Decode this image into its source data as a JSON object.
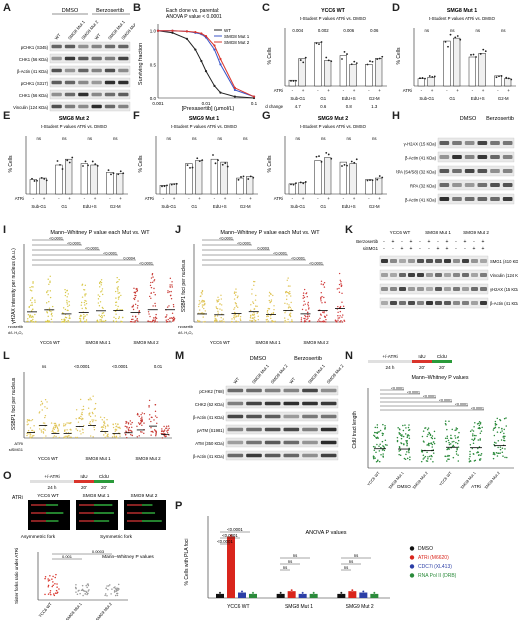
{
  "labels": {
    "A": "A",
    "B": "B",
    "C": "C",
    "D": "D",
    "E": "E",
    "F": "F",
    "G": "G",
    "H": "H",
    "I": "I",
    "J": "J",
    "K": "K",
    "L": "L",
    "M": "M",
    "N": "N",
    "O": "O",
    "P": "P"
  },
  "panelA": {
    "dmso": "DMSO",
    "berzo": "Berzosertib",
    "cols": [
      "WT",
      "SMG8 Mut 1",
      "SMG8 Mut 2",
      "WT",
      "SMG8 Mut 1",
      "SMG8 Mut 2"
    ],
    "rows": [
      "pCHK1 (S345)",
      "CHK1 (56 KDa)",
      "β-Actin (41 KDa)",
      "pCHK1 (S317)",
      "CHK1 (56 KDa)",
      "Vinculin (124 KDa)"
    ]
  },
  "panelB": {
    "note1": "Each clone vs. parental:",
    "note2": "ANOVA P value < 0.0001",
    "xlabel": "[Prexasertib] (μmol/L)",
    "ylabel": "Surviving fraction",
    "legend": [
      "WT",
      "SMG8 Mut 1",
      "SMG8 Mut 2"
    ],
    "colors": [
      "#222222",
      "#3b56c9",
      "#d9342b"
    ],
    "yticks": [
      "1.0",
      "0.5",
      "0.0"
    ],
    "xticks": [
      "0.001",
      "0.01",
      "0.1"
    ]
  },
  "panelC": {
    "title": "YCC6 WT",
    "sub": "t-Student P values ATRi vs. DMSO",
    "fc_label": "Fold change",
    "fc": [
      "4.7",
      "0.6",
      "0.8",
      "1.3"
    ],
    "pvals": [
      "0.004",
      "0.002",
      "0.006",
      "0.06"
    ],
    "cats": [
      "Sub-G1",
      "G1",
      "EdU+S",
      "G2-M"
    ],
    "ylabel": "% Cells",
    "atri": "ATRi"
  },
  "panelD": {
    "title": "SMG8 Mut 1",
    "sub": "t-Student P values ATRi vs. DMSO",
    "pvals": [
      "ns",
      "ns",
      "ns",
      "ns"
    ],
    "cats": [
      "Sub-G1",
      "G1",
      "EdU+S",
      "G2-M"
    ],
    "ylabel": "% Cells",
    "atri": "ATRi"
  },
  "panelE": {
    "title": "SMG8 Mut 2",
    "sub": "t-Student P values ATRi vs. DMSO",
    "pvals": [
      "ns",
      "ns",
      "ns",
      "ns"
    ],
    "cats": [
      "Sub-G1",
      "G1",
      "EdU+S",
      "G2-M"
    ],
    "ylabel": "% Cells",
    "atri": "ATRi"
  },
  "panelF": {
    "title": "SMG9 Mut 1",
    "sub": "t-Student P values ATRi vs. DMSO",
    "pvals": [
      "ns",
      "ns",
      "ns",
      "ns"
    ],
    "cats": [
      "Sub-G1",
      "G1",
      "EdU+S",
      "G2-M"
    ],
    "ylabel": "% Cells",
    "atri": "ATRi"
  },
  "panelG": {
    "title": "SMG9 Mut 2",
    "sub": "t-Student P values ATRi vs. DMSO",
    "pvals": [
      "ns",
      "ns",
      "ns",
      "ns"
    ],
    "cats": [
      "Sub-G1",
      "G1",
      "EdU+S",
      "G2-M"
    ],
    "ylabel": "% Cells",
    "atri": "ATRi"
  },
  "panelH": {
    "dmso": "DMSO",
    "berzo": "Berzosertib",
    "rows": [
      "γ-H2AX (15 KDa)",
      "β-Actin (41 KDa)",
      "pRPA (S4/S8) (32 KDa)",
      "RPA (32 KDa)",
      "β-Actin (41 KDa)"
    ]
  },
  "panelI": {
    "title": "Mann–Whitney P value each Mut vs. WT",
    "ylabel": "γH2AX intensity per nucleus (a.u.)",
    "groups": [
      "YCC6 WT",
      "SMG8 Mut 1",
      "SMG9 Mut 2"
    ],
    "row1": "24 hr berzosertib",
    "row2": "3 hr 3 mmol/L H₂O₂",
    "pvals": [
      "<0.0001",
      "<0.0001",
      "<0.0001",
      "<0.0001",
      "0.0004",
      "<0.0001"
    ]
  },
  "panelJ": {
    "title": "Mann–Whitney P value each Mut vs. WT",
    "ylabel": "SSBP1 foci per nucleus",
    "groups": [
      "YCC6 WT",
      "SMG8 Mut 1",
      "SMG9 Mut 2"
    ],
    "row1": "24 hr berzosertib",
    "row2": "3 hr 4 mmol/L H₂O₂",
    "pvals": [
      "<0.0001",
      "<0.0001",
      "0.0003",
      "<0.0001",
      "<0.0001",
      "<0.0001"
    ]
  },
  "panelK": {
    "groups": [
      "YCC6 WT",
      "SMG8 Mut 1",
      "SMG9 Mut 2"
    ],
    "row1": "Berzosertib",
    "row2": "siSMG1",
    "rows": [
      "SMG1 (410 KDa)",
      "Vinculin (124 KDa)",
      "γH2AX (15 KDa)",
      "β-Actin (41 KDa)"
    ]
  },
  "panelL": {
    "ylabel": "SSBP1 foci per nucleus",
    "groups": [
      "YCC6 WT",
      "SMG8 Mut 1",
      "SMG9 Mut 2"
    ],
    "row1": "ATRi",
    "row2": "siSMG1",
    "pvals": [
      "ns",
      "<0.0001",
      "<0.0001",
      "0.01"
    ]
  },
  "panelM": {
    "dmso": "DMSO",
    "berzo": "Berzosertib",
    "cols": [
      "WT",
      "SMG8 Mut 1",
      "SMG9 Mut 2",
      "WT",
      "SMG8 Mut 1",
      "SMG9 Mut 2"
    ],
    "rows": [
      "pCHK2 (T68)",
      "CHK2 (62 KDa)",
      "β-Actin (41 KDa)",
      "pATM (S1981)",
      "ATM (350 KDa)",
      "β-Actin (41 KDa)"
    ]
  },
  "panelN": {
    "timeline": [
      "+/-ATRi",
      "IdU",
      "CldU"
    ],
    "times": [
      "24 h",
      "20'",
      "20'"
    ],
    "title": "Mann–Whitney P values",
    "ylabel": "CldU tract length",
    "pvals": [
      "<0.0001",
      "<0.0001",
      "<0.0001",
      "<0.0001",
      "<0.0001",
      "<0.0001"
    ],
    "cond": [
      "DMSO",
      "ATRi"
    ],
    "groups": [
      "YCC6 WT",
      "SMG8 Mut 1",
      "SMG9 Mut 2"
    ]
  },
  "panelO": {
    "timeline": [
      "+/-ATRi",
      "IdU",
      "CldU"
    ],
    "times": [
      "24 h",
      "20'",
      "20'"
    ],
    "atri": "ATRi",
    "clones": [
      "YCC6 WT",
      "SMG8 Mut 1",
      "SMG9 Mut 2"
    ],
    "asym": "Asymmetric fork",
    "sym": "Symmetric fork",
    "ylabel": "Sister forks ratio under ATRi",
    "title": "Mann–Whitney P values",
    "pvals": [
      "0.0003",
      "0.001"
    ],
    "groups": [
      "YCC6 WT",
      "SMG8 Mut 1",
      "SMG9 Mut 2"
    ]
  },
  "panelP": {
    "title": "ANOVA P values",
    "ylabel": "% Cells with PLA foci",
    "pvals": [
      "<0.0001",
      "<0.0001",
      "<0.0001",
      "ns",
      "ns",
      "ns",
      "ns",
      "ns",
      "ns"
    ],
    "groups": [
      "YCC6 WT",
      "SMG8 Mut 1",
      "SMG9 Mut 2"
    ],
    "legend": [
      "DMSO",
      "ATRi (M6620)",
      "CDC7i (XL413)",
      "RNA Pol II (DRB)"
    ],
    "legend_colors": [
      "#111111",
      "#d9251c",
      "#2b3ea6",
      "#2a8a3a"
    ]
  },
  "chart_data": [
    {
      "type": "line",
      "title": "",
      "xlabel": "[Prexasertib] (μmol/L)",
      "ylabel": "Surviving fraction",
      "xscale": "log",
      "xlim": [
        0.001,
        0.1
      ],
      "ylim": [
        0,
        1.1
      ],
      "series": [
        {
          "name": "WT",
          "x": [
            0.001,
            0.002,
            0.004,
            0.006,
            0.008,
            0.01,
            0.015,
            0.02,
            0.04,
            0.1
          ],
          "values": [
            1.0,
            0.97,
            0.88,
            0.72,
            0.55,
            0.4,
            0.18,
            0.08,
            0.02,
            0.0
          ]
        },
        {
          "name": "SMG8 Mut 1",
          "x": [
            0.001,
            0.002,
            0.004,
            0.006,
            0.008,
            0.01,
            0.015,
            0.02,
            0.04,
            0.1
          ],
          "values": [
            1.0,
            1.0,
            0.99,
            0.97,
            0.95,
            0.9,
            0.72,
            0.5,
            0.12,
            0.02
          ]
        },
        {
          "name": "SMG8 Mut 2",
          "x": [
            0.001,
            0.002,
            0.004,
            0.006,
            0.008,
            0.01,
            0.015,
            0.02,
            0.04,
            0.1
          ],
          "values": [
            1.0,
            1.0,
            0.99,
            0.98,
            0.96,
            0.92,
            0.78,
            0.58,
            0.15,
            0.02
          ]
        }
      ]
    },
    {
      "type": "bar",
      "title": "YCC6 WT",
      "categories": [
        "Sub-G1",
        "G1",
        "EdU+S",
        "G2-M"
      ],
      "ylabel": "% Cells",
      "ylim": [
        0,
        80
      ],
      "series": [
        {
          "name": "DMSO",
          "values": [
            8,
            60,
            42,
            30
          ]
        },
        {
          "name": "ATRi",
          "values": [
            38,
            35,
            30,
            38
          ]
        }
      ]
    },
    {
      "type": "bar",
      "title": "SMG8 Mut 1",
      "categories": [
        "Sub-G1",
        "G1",
        "EdU+S",
        "G2-M"
      ],
      "ylabel": "% Cells",
      "ylim": [
        0,
        80
      ],
      "series": [
        {
          "name": "DMSO",
          "values": [
            10,
            62,
            40,
            14
          ]
        },
        {
          "name": "ATRi",
          "values": [
            12,
            66,
            45,
            10
          ]
        }
      ]
    },
    {
      "type": "bar",
      "title": "SMG8 Mut 2",
      "categories": [
        "Sub-G1",
        "G1",
        "EdU+S",
        "G2-M"
      ],
      "ylabel": "% Cells",
      "ylim": [
        0,
        80
      ],
      "series": [
        {
          "name": "DMSO",
          "values": [
            20,
            40,
            42,
            30
          ]
        },
        {
          "name": "ATRi",
          "values": [
            22,
            48,
            40,
            28
          ]
        }
      ]
    },
    {
      "type": "bar",
      "title": "SMG9 Mut 1",
      "categories": [
        "Sub-G1",
        "G1",
        "EdU+S",
        "G2-M"
      ],
      "ylabel": "% Cells",
      "ylim": [
        0,
        80
      ],
      "series": [
        {
          "name": "DMSO",
          "values": [
            12,
            42,
            48,
            22
          ]
        },
        {
          "name": "ATRi",
          "values": [
            14,
            46,
            44,
            24
          ]
        }
      ]
    },
    {
      "type": "bar",
      "title": "SMG9 Mut 2",
      "categories": [
        "Sub-G1",
        "G1",
        "EdU+S",
        "G2-M"
      ],
      "ylabel": "% Cells",
      "ylim": [
        0,
        80
      ],
      "series": [
        {
          "name": "DMSO",
          "values": [
            14,
            46,
            44,
            20
          ]
        },
        {
          "name": "ATRi",
          "values": [
            16,
            50,
            42,
            22
          ]
        }
      ]
    },
    {
      "type": "bar",
      "title": "ANOVA P values",
      "categories": [
        "YCC6 WT",
        "SMG8 Mut 1",
        "SMG9 Mut 2"
      ],
      "ylabel": "% Cells with PLA foci",
      "ylim": [
        0,
        60
      ],
      "series": [
        {
          "name": "DMSO",
          "values": [
            3,
            3,
            3
          ]
        },
        {
          "name": "ATRi (M6620)",
          "values": [
            45,
            5,
            5
          ]
        },
        {
          "name": "CDC7i (XL413)",
          "values": [
            4,
            3,
            4
          ]
        },
        {
          "name": "RNA Pol II (DRB)",
          "values": [
            3,
            3,
            3
          ]
        }
      ]
    }
  ]
}
